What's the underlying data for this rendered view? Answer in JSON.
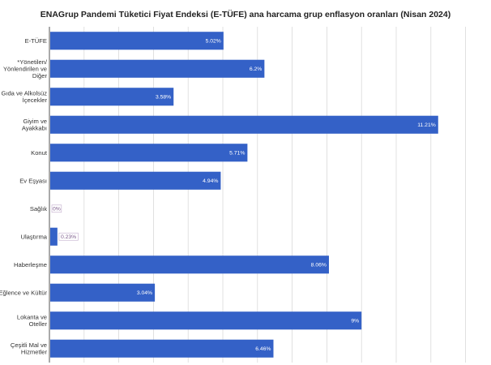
{
  "chart_data": {
    "type": "bar",
    "orientation": "horizontal",
    "title": "ENAGrup Pandemi Tüketici Fiyat Endeksi (E-TÜFE) ana harcama grup enflasyon oranları (Nisan 2024)",
    "xlabel": "",
    "ylabel": "",
    "xlim": [
      0,
      12.5
    ],
    "grid": true,
    "legend": "none",
    "bar_color": "#3461c7",
    "categories": [
      [
        "E-TÜFE"
      ],
      [
        "*Yönetilen/",
        "Yönlendirilen ve",
        "Diğer"
      ],
      [
        "Gıda ve Alkolsüz",
        "İçecekler"
      ],
      [
        "Giyim ve",
        "Ayakkabı"
      ],
      [
        "Konut"
      ],
      [
        "Ev Eşyası"
      ],
      [
        "Sağlık"
      ],
      [
        "Ulaştırma"
      ],
      [
        "Haberleşme"
      ],
      [
        "Eğlence ve Kültür"
      ],
      [
        "Lokanta ve",
        "Oteller"
      ],
      [
        "Çeşitli Mal ve",
        "Hizmetler"
      ]
    ],
    "values": [
      5.02,
      6.2,
      3.58,
      11.21,
      5.71,
      4.94,
      0,
      0.23,
      8.06,
      3.04,
      9,
      6.46
    ],
    "value_labels": [
      "5.02%",
      "6.2%",
      "3.58%",
      "11.21%",
      "5.71%",
      "4.94%",
      "0%",
      "0.23%",
      "8.06%",
      "3.04%",
      "9%",
      "6.46%"
    ]
  }
}
